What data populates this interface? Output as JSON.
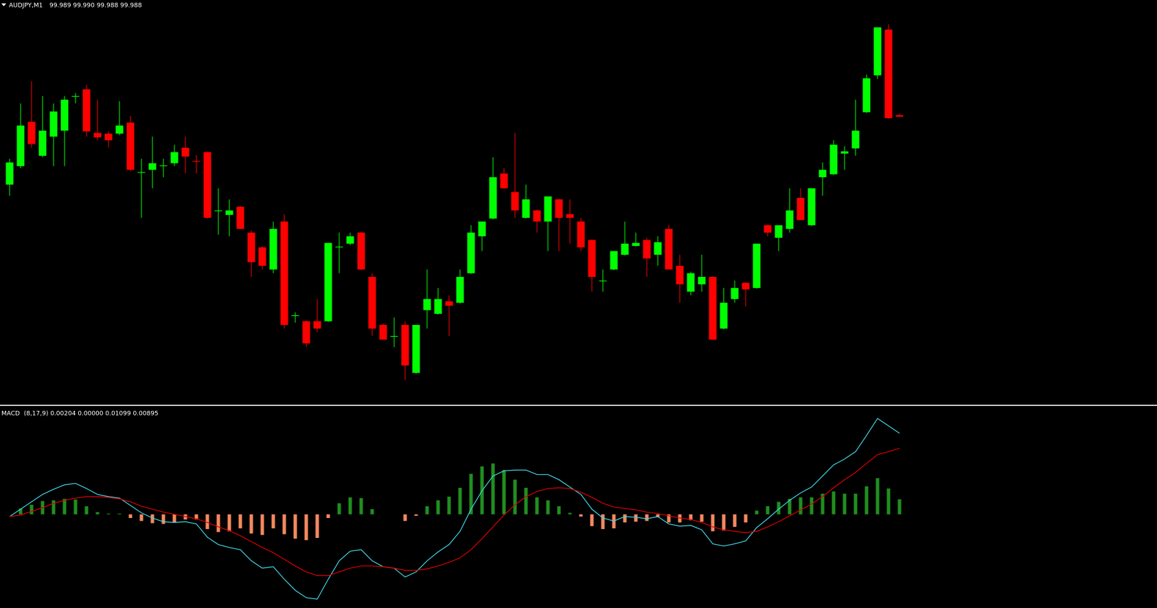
{
  "chart_data": [
    {
      "type": "candlestick",
      "title": "AUDJPY,M1",
      "subtitle": "99.989 99.990 99.988 99.988",
      "up_color": "#00ff00",
      "down_color": "#ff0000",
      "ylim": [
        99.793,
        100.067
      ],
      "open": [
        99.942,
        99.9545,
        99.9845,
        99.9615,
        99.9745,
        99.9785,
        100.0015,
        100.0065,
        99.977,
        99.9765,
        99.9765,
        99.984,
        99.95,
        99.952,
        99.9545,
        99.9565,
        99.967,
        99.958,
        99.964,
        99.924,
        99.9215,
        99.927,
        99.9095,
        99.8995,
        99.8845,
        99.917,
        99.853,
        99.8495,
        99.8495,
        99.8495,
        99.8995,
        99.902,
        99.9095,
        99.8795,
        99.847,
        99.839,
        99.847,
        99.8145,
        99.857,
        99.8545,
        99.863,
        99.862,
        99.882,
        99.907,
        99.919,
        99.9495,
        99.937,
        99.9195,
        99.9245,
        99.917,
        99.932,
        99.922,
        99.917,
        99.9045,
        99.8765,
        99.8845,
        99.8945,
        99.9005,
        99.9045,
        99.8945,
        99.912,
        99.887,
        99.8695,
        99.8745,
        99.8795,
        99.8445,
        99.8645,
        99.8755,
        99.872,
        99.9145,
        99.906,
        99.912,
        99.933,
        99.9145,
        99.947,
        99.949,
        99.963,
        99.9665,
        99.991,
        100.016,
        100.047,
        99.989
      ],
      "high": [
        99.9595,
        99.997,
        100.012,
        100.002,
        99.997,
        100.002,
        100.004,
        100.0095,
        99.9995,
        99.978,
        99.9985,
        99.9885,
        99.9595,
        99.9745,
        99.9595,
        99.969,
        99.9745,
        99.962,
        99.9645,
        99.9395,
        99.932,
        99.9275,
        99.911,
        99.9005,
        99.917,
        99.922,
        99.8555,
        99.85,
        99.8645,
        99.9025,
        99.9095,
        99.9095,
        99.91,
        99.882,
        99.848,
        99.852,
        99.8495,
        99.847,
        99.8845,
        99.872,
        99.867,
        99.8845,
        99.9145,
        99.917,
        99.9605,
        99.953,
        99.977,
        99.942,
        99.925,
        99.934,
        99.9325,
        99.932,
        99.9195,
        99.905,
        99.8845,
        99.897,
        99.917,
        99.9095,
        99.906,
        99.907,
        99.9145,
        99.8945,
        99.883,
        99.8945,
        99.88,
        99.872,
        99.877,
        99.876,
        99.902,
        99.915,
        99.9145,
        99.9395,
        99.9395,
        99.9395,
        99.957,
        99.972,
        99.968,
        99.9995,
        100.0165,
        100.0485,
        100.0505,
        99.99
      ],
      "low": [
        99.9345,
        99.953,
        99.967,
        99.9605,
        99.9545,
        99.9545,
        99.997,
        99.9745,
        99.972,
        99.967,
        99.9755,
        99.951,
        99.9195,
        99.9395,
        99.947,
        99.9545,
        99.9495,
        99.9495,
        99.919,
        99.908,
        99.907,
        99.912,
        99.8795,
        99.8845,
        99.882,
        99.8445,
        99.8485,
        99.832,
        99.842,
        99.849,
        99.882,
        99.901,
        99.884,
        99.8395,
        99.837,
        99.832,
        99.8095,
        99.814,
        99.8445,
        99.854,
        99.8395,
        99.8615,
        99.8815,
        99.897,
        99.9185,
        99.939,
        99.9195,
        99.919,
        99.9095,
        99.897,
        99.897,
        99.902,
        99.897,
        99.8695,
        99.8695,
        99.884,
        99.894,
        99.9,
        99.8795,
        99.887,
        99.8845,
        99.862,
        99.867,
        99.8695,
        99.837,
        99.844,
        99.862,
        99.8595,
        99.8715,
        99.907,
        99.897,
        99.9095,
        99.918,
        99.914,
        99.9345,
        99.9485,
        99.952,
        99.9615,
        99.9905,
        100.0135,
        99.9865,
        99.988
      ],
      "close": [
        99.957,
        99.982,
        99.9695,
        99.9785,
        99.9915,
        99.9995,
        100.002,
        99.978,
        99.974,
        99.972,
        99.982,
        99.952,
        99.9505,
        99.9565,
        99.955,
        99.964,
        99.961,
        99.9575,
        99.9195,
        99.9245,
        99.9245,
        99.912,
        99.8895,
        99.887,
        99.912,
        99.847,
        99.8535,
        99.8345,
        99.8445,
        99.9025,
        99.9,
        99.907,
        99.8845,
        99.8445,
        99.837,
        99.8395,
        99.8195,
        99.847,
        99.8645,
        99.8645,
        99.86,
        99.8795,
        99.9095,
        99.917,
        99.947,
        99.9395,
        99.9245,
        99.932,
        99.917,
        99.934,
        99.9195,
        99.9195,
        99.8995,
        99.8795,
        99.877,
        99.897,
        99.902,
        99.9025,
        99.892,
        99.903,
        99.8845,
        99.8745,
        99.882,
        99.8795,
        99.837,
        99.862,
        99.872,
        99.871,
        99.902,
        99.9095,
        99.9145,
        99.9245,
        99.918,
        99.9395,
        99.952,
        99.969,
        99.9645,
        99.9785,
        100.014,
        100.0485,
        99.987,
        99.988
      ]
    },
    {
      "type": "macd",
      "title": "MACD  (8,17,9) 0.00204 0.00000 0.01099 0.00895",
      "ylim": [
        -0.0127,
        0.0145
      ],
      "bar_up_color": "#1f8f1f",
      "bar_down_color": "#f4895f",
      "bars": [
        0.0,
        0.0008,
        0.0013,
        0.0018,
        0.0019,
        0.0021,
        0.002,
        0.0011,
        0.0003,
        0.0001,
        0.0001,
        -0.0005,
        -0.0009,
        -0.0012,
        -0.0013,
        -0.0011,
        -0.0007,
        -0.0007,
        -0.002,
        -0.0024,
        -0.0023,
        -0.0019,
        -0.0026,
        -0.0028,
        -0.0019,
        -0.0027,
        -0.0033,
        -0.0035,
        -0.0032,
        -0.0005,
        0.0015,
        0.0023,
        0.0022,
        0.0007,
        0.0,
        0.0,
        -0.0009,
        -0.0002,
        0.0011,
        0.0019,
        0.0024,
        0.0036,
        0.0055,
        0.0065,
        0.0069,
        0.006,
        0.0047,
        0.0036,
        0.0023,
        0.0019,
        0.0011,
        0.0002,
        -0.0003,
        -0.0016,
        -0.002,
        -0.0019,
        -0.0011,
        -0.001,
        -0.0009,
        -0.0004,
        -0.0011,
        -0.0011,
        -0.0008,
        -0.001,
        -0.0023,
        -0.0022,
        -0.0017,
        -0.0011,
        0.0005,
        0.0011,
        0.0017,
        0.0021,
        0.0023,
        0.0023,
        0.0028,
        0.0031,
        0.0028,
        0.0028,
        0.0038,
        0.0049,
        0.0035,
        0.00204
      ],
      "series": [
        {
          "color": "#3fd6e6",
          "values": [
            -0.0003,
            0.0007,
            0.0017,
            0.0027,
            0.0034,
            0.004,
            0.0042,
            0.0035,
            0.0027,
            0.0024,
            0.0022,
            0.0012,
            0.0002,
            -0.0005,
            -0.001,
            -0.0011,
            -0.001,
            -0.0013,
            -0.0031,
            -0.0041,
            -0.0045,
            -0.0048,
            -0.0063,
            -0.0073,
            -0.0071,
            -0.0088,
            -0.0103,
            -0.0113,
            -0.0115,
            -0.0088,
            -0.0063,
            -0.005,
            -0.0048,
            -0.0063,
            -0.0071,
            -0.0073,
            -0.0085,
            -0.0078,
            -0.0063,
            -0.0051,
            -0.0041,
            -0.0023,
            0.0007,
            0.0032,
            0.0052,
            0.0059,
            0.006,
            0.006,
            0.0054,
            0.0054,
            0.0047,
            0.0037,
            0.0027,
            0.0007,
            -0.0005,
            -0.0009,
            -0.0003,
            -0.0004,
            -0.0006,
            -0.0003,
            -0.0013,
            -0.0016,
            -0.0015,
            -0.0021,
            -0.004,
            -0.0043,
            -0.004,
            -0.0036,
            -0.0018,
            -0.0006,
            0.0007,
            0.0019,
            0.0029,
            0.0037,
            0.0052,
            0.0067,
            0.0075,
            0.0085,
            0.0107,
            0.013,
            0.012,
            0.01099
          ]
        },
        {
          "color": "#e00000",
          "values": [
            -0.0003,
            -0.0001,
            0.0004,
            0.0009,
            0.0015,
            0.0019,
            0.0022,
            0.0024,
            0.0024,
            0.0023,
            0.0021,
            0.0017,
            0.0011,
            0.0007,
            0.0003,
            0.0,
            -0.0003,
            -0.0006,
            -0.0011,
            -0.0017,
            -0.0022,
            -0.0029,
            -0.0037,
            -0.0045,
            -0.0052,
            -0.0061,
            -0.007,
            -0.0078,
            -0.0083,
            -0.0083,
            -0.0078,
            -0.0073,
            -0.007,
            -0.007,
            -0.0071,
            -0.0073,
            -0.0076,
            -0.0076,
            -0.0074,
            -0.007,
            -0.0065,
            -0.0059,
            -0.0048,
            -0.0033,
            -0.0017,
            -0.0001,
            0.0013,
            0.0024,
            0.0031,
            0.0035,
            0.0036,
            0.0035,
            0.003,
            0.0023,
            0.0015,
            0.001,
            0.0008,
            0.0006,
            0.0003,
            0.0001,
            -0.0002,
            -0.0005,
            -0.0007,
            -0.0011,
            -0.0017,
            -0.0021,
            -0.0023,
            -0.0025,
            -0.0023,
            -0.0017,
            -0.001,
            -0.0002,
            0.0006,
            0.0014,
            0.0024,
            0.0036,
            0.0047,
            0.0057,
            0.0069,
            0.0081,
            0.0085,
            0.00895
          ]
        }
      ]
    }
  ]
}
